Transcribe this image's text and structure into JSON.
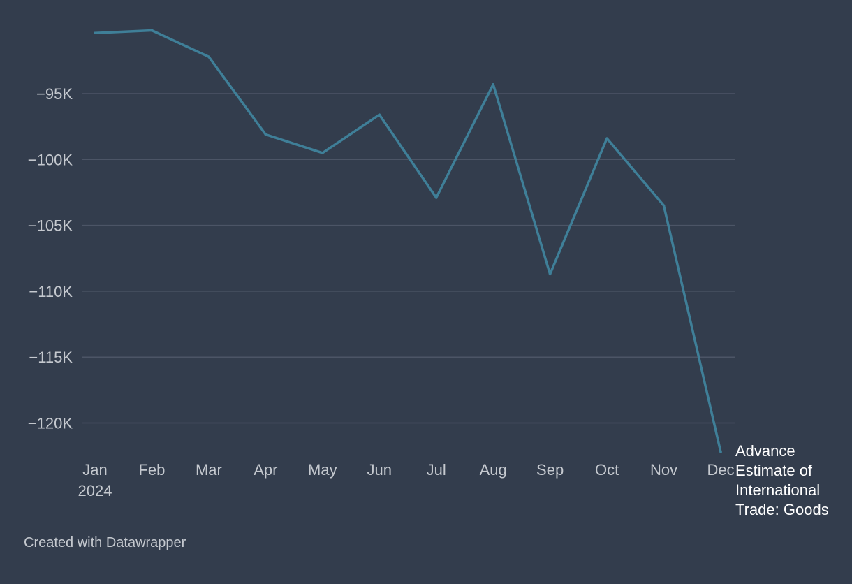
{
  "chart_data": {
    "type": "line",
    "title": "",
    "xlabel": "",
    "ylabel": "",
    "categories": [
      "Jan",
      "Feb",
      "Mar",
      "Apr",
      "May",
      "Jun",
      "Jul",
      "Aug",
      "Sep",
      "Oct",
      "Nov",
      "Dec"
    ],
    "x_year_label": "2024",
    "y_ticks": [
      -95000,
      -100000,
      -105000,
      -110000,
      -115000,
      -120000
    ],
    "y_tick_labels": [
      "−95K",
      "−100K",
      "−105K",
      "−110K",
      "−115K",
      "−120K"
    ],
    "ylim": [
      -122500,
      -89500
    ],
    "grid": true,
    "series": [
      {
        "name": "Advance Estimate of International Trade: Goods",
        "values": [
          -90400,
          -90200,
          -92200,
          -98100,
          -99500,
          -96600,
          -102900,
          -94300,
          -108700,
          -98400,
          -103500,
          -122200
        ]
      }
    ],
    "colors": {
      "line": "#3f7f98",
      "background": "#333d4d",
      "grid": "#4c5566",
      "text": "#c5c9cf",
      "label": "#ffffff"
    }
  },
  "footer": {
    "credit": "Created with Datawrapper"
  }
}
